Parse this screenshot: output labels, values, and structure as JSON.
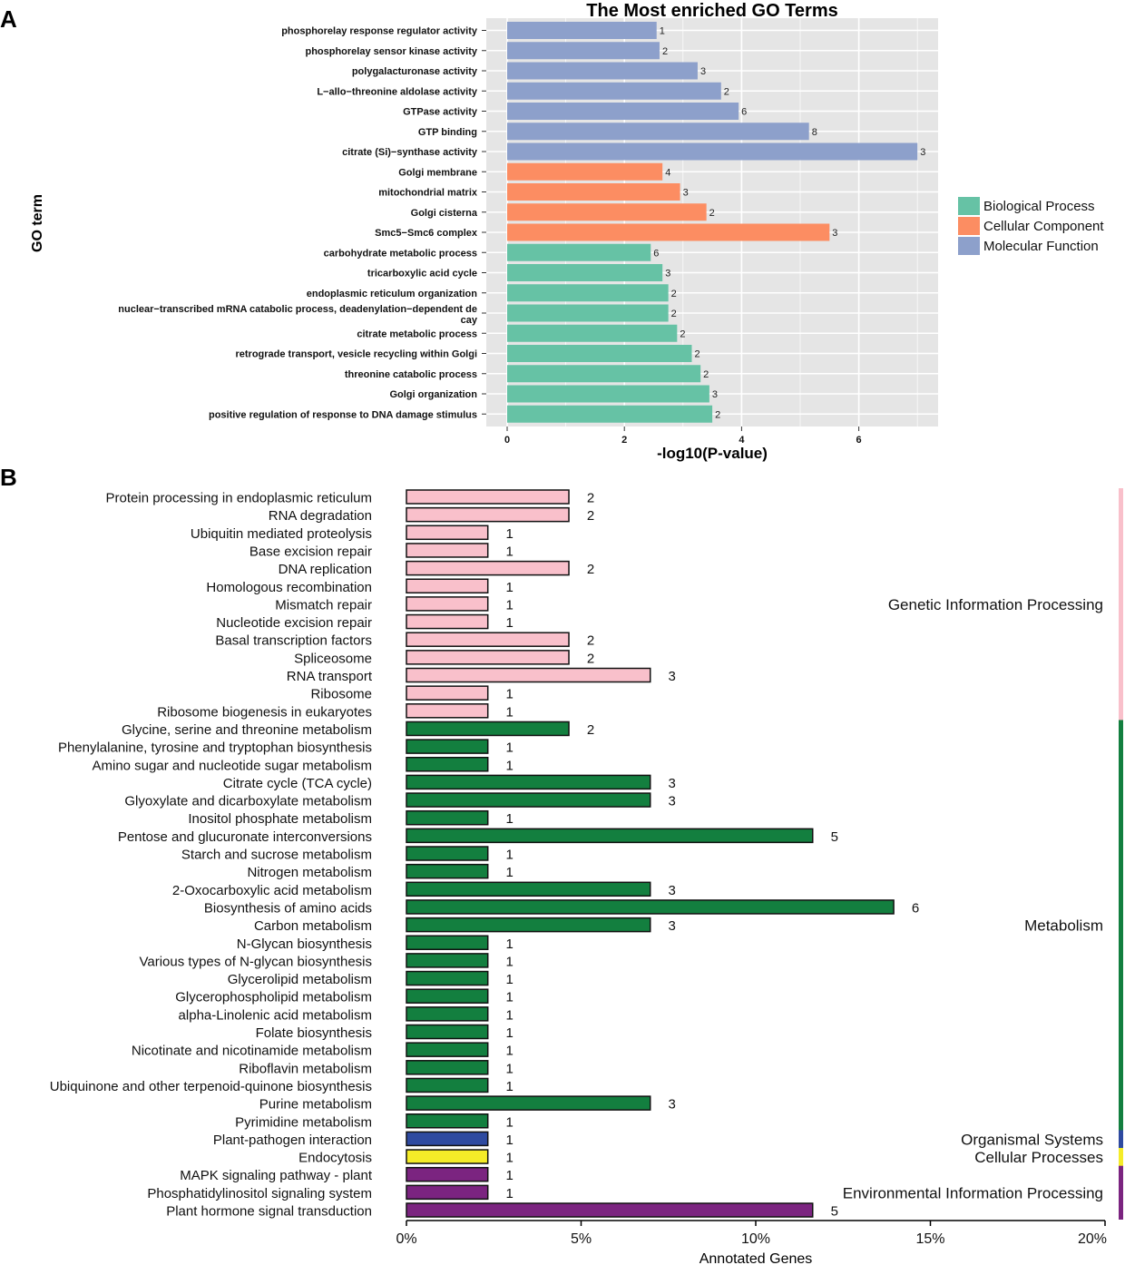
{
  "panel_labels": {
    "a": "A",
    "b": "B"
  },
  "chart_data": [
    {
      "type": "bar",
      "orientation": "horizontal",
      "title": "The Most enriched GO Terms",
      "xlabel": "-log10(P-value)",
      "ylabel": "GO term",
      "xlim": [
        0,
        7.2
      ],
      "xticks": [
        0,
        2,
        4,
        6
      ],
      "grid": true,
      "legend_position": "right",
      "legend": [
        {
          "name": "Biological Process",
          "color": "#66c2a5"
        },
        {
          "name": "Cellular Component",
          "color": "#fc8d62"
        },
        {
          "name": "Molecular Function",
          "color": "#8da0cb"
        }
      ],
      "bars": [
        {
          "label": "phosphorelay response regulator activity",
          "value": 2.55,
          "count": "1",
          "category": 2
        },
        {
          "label": "phosphorelay sensor kinase activity",
          "value": 2.6,
          "count": "2",
          "category": 2
        },
        {
          "label": "polygalacturonase activity",
          "value": 3.25,
          "count": "3",
          "category": 2
        },
        {
          "label": "L−allo−threonine aldolase activity",
          "value": 3.65,
          "count": "2",
          "category": 2
        },
        {
          "label": "GTPase activity",
          "value": 3.95,
          "count": "6",
          "category": 2
        },
        {
          "label": "GTP binding",
          "value": 5.15,
          "count": "8",
          "category": 2
        },
        {
          "label": "citrate (Si)−synthase activity",
          "value": 7.0,
          "count": "3",
          "category": 2
        },
        {
          "label": "Golgi membrane",
          "value": 2.65,
          "count": "4",
          "category": 1
        },
        {
          "label": "mitochondrial matrix",
          "value": 2.95,
          "count": "3",
          "category": 1
        },
        {
          "label": "Golgi cisterna",
          "value": 3.4,
          "count": "2",
          "category": 1
        },
        {
          "label": "Smc5−Smc6 complex",
          "value": 5.5,
          "count": "3",
          "category": 1
        },
        {
          "label": "carbohydrate metabolic process",
          "value": 2.45,
          "count": "6",
          "category": 0
        },
        {
          "label": "tricarboxylic acid cycle",
          "value": 2.65,
          "count": "3",
          "category": 0
        },
        {
          "label": "endoplasmic reticulum organization",
          "value": 2.75,
          "count": "2",
          "category": 0
        },
        {
          "label": "nuclear−transcribed mRNA catabolic process, deadenylation−dependent de",
          "label2": "cay",
          "value": 2.75,
          "count": "2",
          "category": 0
        },
        {
          "label": "citrate metabolic process",
          "value": 2.9,
          "count": "2",
          "category": 0
        },
        {
          "label": "retrograde transport, vesicle recycling within Golgi",
          "value": 3.15,
          "count": "2",
          "category": 0
        },
        {
          "label": "threonine catabolic process",
          "value": 3.3,
          "count": "2",
          "category": 0
        },
        {
          "label": "Golgi organization",
          "value": 3.45,
          "count": "3",
          "category": 0
        },
        {
          "label": "positive regulation of response to DNA damage stimulus",
          "value": 3.5,
          "count": "2",
          "category": 0
        }
      ]
    },
    {
      "type": "bar",
      "orientation": "horizontal",
      "title": "",
      "xlabel": "Annotated Genes",
      "xlim": [
        0,
        20
      ],
      "xticks": [
        "0%",
        "5%",
        "10%",
        "15%",
        "20%"
      ],
      "unit": "percent",
      "grid": false,
      "groups": [
        {
          "name": "Genetic Information Processing",
          "color": "#f9c0cb",
          "start": 0,
          "end": 12
        },
        {
          "name": "Metabolism",
          "color": "#137f3f",
          "start": 13,
          "end": 35
        },
        {
          "name": "Organismal Systems",
          "color": "#2e4aa0",
          "start": 36,
          "end": 36
        },
        {
          "name": "Cellular Processes",
          "color": "#f5ec28",
          "start": 37,
          "end": 37
        },
        {
          "name": "Environmental Information Processing",
          "color": "#7b2480",
          "start": 38,
          "end": 40
        }
      ],
      "bars": [
        {
          "label": "Protein processing in endoplasmic reticulum",
          "value": 4.65,
          "count": "2"
        },
        {
          "label": "RNA degradation",
          "value": 4.65,
          "count": "2"
        },
        {
          "label": "Ubiquitin mediated proteolysis",
          "value": 2.33,
          "count": "1"
        },
        {
          "label": "Base excision repair",
          "value": 2.33,
          "count": "1"
        },
        {
          "label": "DNA replication",
          "value": 4.65,
          "count": "2"
        },
        {
          "label": "Homologous recombination",
          "value": 2.33,
          "count": "1"
        },
        {
          "label": "Mismatch repair",
          "value": 2.33,
          "count": "1"
        },
        {
          "label": "Nucleotide excision repair",
          "value": 2.33,
          "count": "1"
        },
        {
          "label": "Basal transcription factors",
          "value": 4.65,
          "count": "2"
        },
        {
          "label": "Spliceosome",
          "value": 4.65,
          "count": "2"
        },
        {
          "label": "RNA transport",
          "value": 6.98,
          "count": "3"
        },
        {
          "label": "Ribosome",
          "value": 2.33,
          "count": "1"
        },
        {
          "label": "Ribosome biogenesis in eukaryotes",
          "value": 2.33,
          "count": "1"
        },
        {
          "label": "Glycine, serine and threonine metabolism",
          "value": 4.65,
          "count": "2"
        },
        {
          "label": "Phenylalanine, tyrosine and tryptophan biosynthesis",
          "value": 2.33,
          "count": "1"
        },
        {
          "label": "Amino sugar and nucleotide sugar metabolism",
          "value": 2.33,
          "count": "1"
        },
        {
          "label": "Citrate cycle (TCA cycle)",
          "value": 6.98,
          "count": "3"
        },
        {
          "label": "Glyoxylate and dicarboxylate metabolism",
          "value": 6.98,
          "count": "3"
        },
        {
          "label": "Inositol phosphate metabolism",
          "value": 2.33,
          "count": "1"
        },
        {
          "label": "Pentose and glucuronate interconversions",
          "value": 11.63,
          "count": "5"
        },
        {
          "label": "Starch and sucrose metabolism",
          "value": 2.33,
          "count": "1"
        },
        {
          "label": "Nitrogen metabolism",
          "value": 2.33,
          "count": "1"
        },
        {
          "label": "2-Oxocarboxylic acid metabolism",
          "value": 6.98,
          "count": "3"
        },
        {
          "label": "Biosynthesis of amino acids",
          "value": 13.95,
          "count": "6"
        },
        {
          "label": "Carbon metabolism",
          "value": 6.98,
          "count": "3"
        },
        {
          "label": "N-Glycan biosynthesis",
          "value": 2.33,
          "count": "1"
        },
        {
          "label": "Various types of N-glycan biosynthesis",
          "value": 2.33,
          "count": "1"
        },
        {
          "label": "Glycerolipid metabolism",
          "value": 2.33,
          "count": "1"
        },
        {
          "label": "Glycerophospholipid metabolism",
          "value": 2.33,
          "count": "1"
        },
        {
          "label": "alpha-Linolenic acid metabolism",
          "value": 2.33,
          "count": "1"
        },
        {
          "label": "Folate biosynthesis",
          "value": 2.33,
          "count": "1"
        },
        {
          "label": "Nicotinate and nicotinamide metabolism",
          "value": 2.33,
          "count": "1"
        },
        {
          "label": "Riboflavin metabolism",
          "value": 2.33,
          "count": "1"
        },
        {
          "label": "Ubiquinone and other terpenoid-quinone biosynthesis",
          "value": 2.33,
          "count": "1"
        },
        {
          "label": "Purine metabolism",
          "value": 6.98,
          "count": "3"
        },
        {
          "label": "Pyrimidine metabolism",
          "value": 2.33,
          "count": "1"
        },
        {
          "label": "Plant-pathogen interaction",
          "value": 2.33,
          "count": "1"
        },
        {
          "label": "Endocytosis",
          "value": 2.33,
          "count": "1"
        },
        {
          "label": "MAPK signaling pathway - plant",
          "value": 2.33,
          "count": "1"
        },
        {
          "label": "Phosphatidylinositol signaling system",
          "value": 2.33,
          "count": "1"
        },
        {
          "label": "Plant hormone signal transduction",
          "value": 11.63,
          "count": "5"
        }
      ]
    }
  ]
}
